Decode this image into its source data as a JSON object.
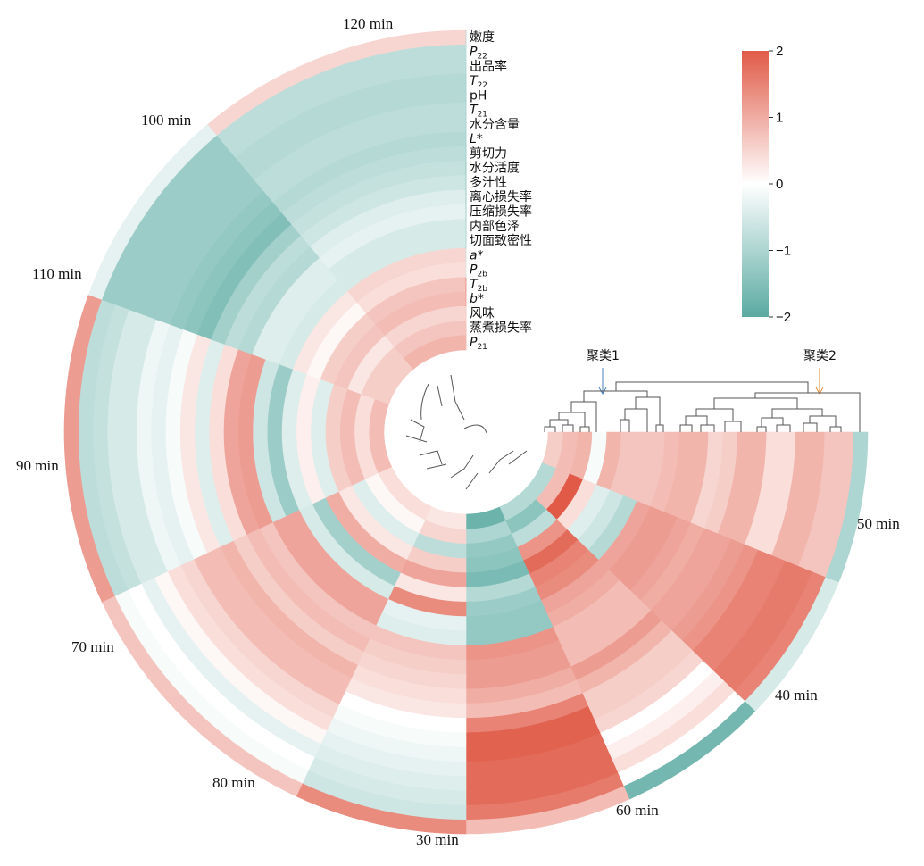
{
  "chart_data": {
    "type": "heatmap",
    "layout": "circular",
    "segments": [
      "50 min",
      "40 min",
      "60 min",
      "30 min",
      "80 min",
      "70 min",
      "90 min",
      "110 min",
      "100 min",
      "120 min"
    ],
    "rows": [
      {
        "label": "嫩度"
      },
      {
        "label": "P",
        "sub": "22",
        "italic": true
      },
      {
        "label": "出品率"
      },
      {
        "label": "T",
        "sub": "22",
        "italic": true
      },
      {
        "label": "pH"
      },
      {
        "label": "T",
        "sub": "21",
        "italic": true
      },
      {
        "label": "水分含量"
      },
      {
        "label": "L*",
        "italic": true
      },
      {
        "label": "剪切力"
      },
      {
        "label": "水分活度"
      },
      {
        "label": "多汁性"
      },
      {
        "label": "离心损失率"
      },
      {
        "label": "压缩损失率"
      },
      {
        "label": "内部色泽"
      },
      {
        "label": "切面致密性"
      },
      {
        "label": "a*",
        "italic": true
      },
      {
        "label": "P",
        "sub": "2b",
        "italic": true
      },
      {
        "label": "T",
        "sub": "2b",
        "italic": true
      },
      {
        "label": "b*",
        "italic": true
      },
      {
        "label": "风味"
      },
      {
        "label": "蒸煮损失率"
      },
      {
        "label": "P",
        "sub": "21",
        "italic": true
      }
    ],
    "values": {
      "50 min": [
        -1.0,
        0.7,
        0.7,
        0.9,
        0.9,
        0.4,
        0.4,
        0.9,
        0.9,
        0.6,
        0.5,
        0.9,
        0.9,
        0.8,
        0.7,
        0.7,
        0.7,
        0.9,
        -0.1,
        0.9,
        0.8,
        0.6
      ],
      "40 min": [
        -0.5,
        1.5,
        1.6,
        1.6,
        1.5,
        1.5,
        1.3,
        1.2,
        1.1,
        1.1,
        1.0,
        1.1,
        1.2,
        1.2,
        1.1,
        -0.9,
        -0.6,
        -0.4,
        0.4,
        2.0,
        0.8,
        -0.9
      ],
      "60 min": [
        -1.7,
        0.0,
        0.4,
        0.2,
        0.0,
        0.5,
        0.6,
        0.6,
        0.9,
        1.2,
        0.8,
        0.8,
        0.8,
        1.0,
        1.1,
        1.4,
        1.5,
        1.8,
        1.3,
        -0.8,
        -1.4,
        -0.9
      ],
      "30 min": [
        0.8,
        1.6,
        1.8,
        1.8,
        1.8,
        1.9,
        1.9,
        1.5,
        0.8,
        1.0,
        1.2,
        1.2,
        1.3,
        -1.3,
        -1.3,
        -1.2,
        -0.9,
        -1.6,
        -1.4,
        -1.3,
        -1.0,
        -1.8
      ],
      "80 min": [
        1.4,
        -0.6,
        -0.5,
        -0.4,
        -0.3,
        -0.2,
        -0.1,
        0.0,
        0.3,
        0.4,
        0.5,
        0.6,
        0.7,
        -0.4,
        -0.3,
        1.4,
        0.3,
        1.1,
        0.6,
        -0.8,
        0.5,
        0.3
      ],
      "70 min": [
        0.7,
        -0.1,
        0.0,
        -0.3,
        0.1,
        0.4,
        0.5,
        0.8,
        0.8,
        0.9,
        0.6,
        0.8,
        0.7,
        1.1,
        1.1,
        -0.5,
        -1.1,
        1.0,
        0.3,
        -0.4,
        0.1,
        0.4
      ],
      "90 min": [
        1.2,
        -0.8,
        -0.7,
        -0.5,
        -0.5,
        -0.2,
        -0.3,
        -0.1,
        0.3,
        -0.4,
        0.4,
        1.1,
        1.2,
        -0.6,
        -1.2,
        -0.4,
        0.2,
        -0.4,
        0.6,
        0.8,
        0.4,
        0.8
      ],
      "110 min": [
        -0.3,
        -1.2,
        -1.2,
        -1.2,
        -1.2,
        -1.2,
        -1.3,
        -1.4,
        -1.5,
        -1.1,
        -0.8,
        -0.9,
        -0.4,
        -0.4,
        -0.5,
        0.3,
        0.1,
        0.6,
        0.7,
        0.3,
        0.6,
        0.6
      ],
      "100 min": [
        0.5,
        -0.8,
        -0.8,
        -0.9,
        -0.9,
        -0.8,
        -0.8,
        -0.9,
        -0.8,
        -0.7,
        -0.6,
        -0.4,
        -0.3,
        -0.5,
        -0.5,
        0.5,
        0.4,
        0.7,
        0.8,
        0.5,
        0.7,
        0.9
      ],
      "120 min": [
        -1.1,
        -0.9,
        -1.1,
        -1.2,
        -1.3,
        -1.3,
        -1.3,
        -1.3,
        -1.4,
        -1.8,
        -1.7,
        -1.8,
        -1.7,
        -1.4,
        -1.3,
        -0.8,
        -0.6,
        1.7,
        1.4,
        0.7,
        0.8,
        0.9
      ]
    },
    "colorbar": {
      "min": -2,
      "max": 2,
      "ticks": [
        2,
        1,
        0,
        -1,
        -2
      ],
      "tick_labels": [
        "2",
        "1",
        "0",
        "−1",
        "−2"
      ]
    },
    "colors": {
      "low": "#5aaaa2",
      "mid": "#ffffff",
      "high": "#e05a47"
    },
    "clusters": [
      {
        "label": "聚类1",
        "color": "#4a7fc0"
      },
      {
        "label": "聚类2",
        "color": "#e08a3a"
      }
    ]
  }
}
